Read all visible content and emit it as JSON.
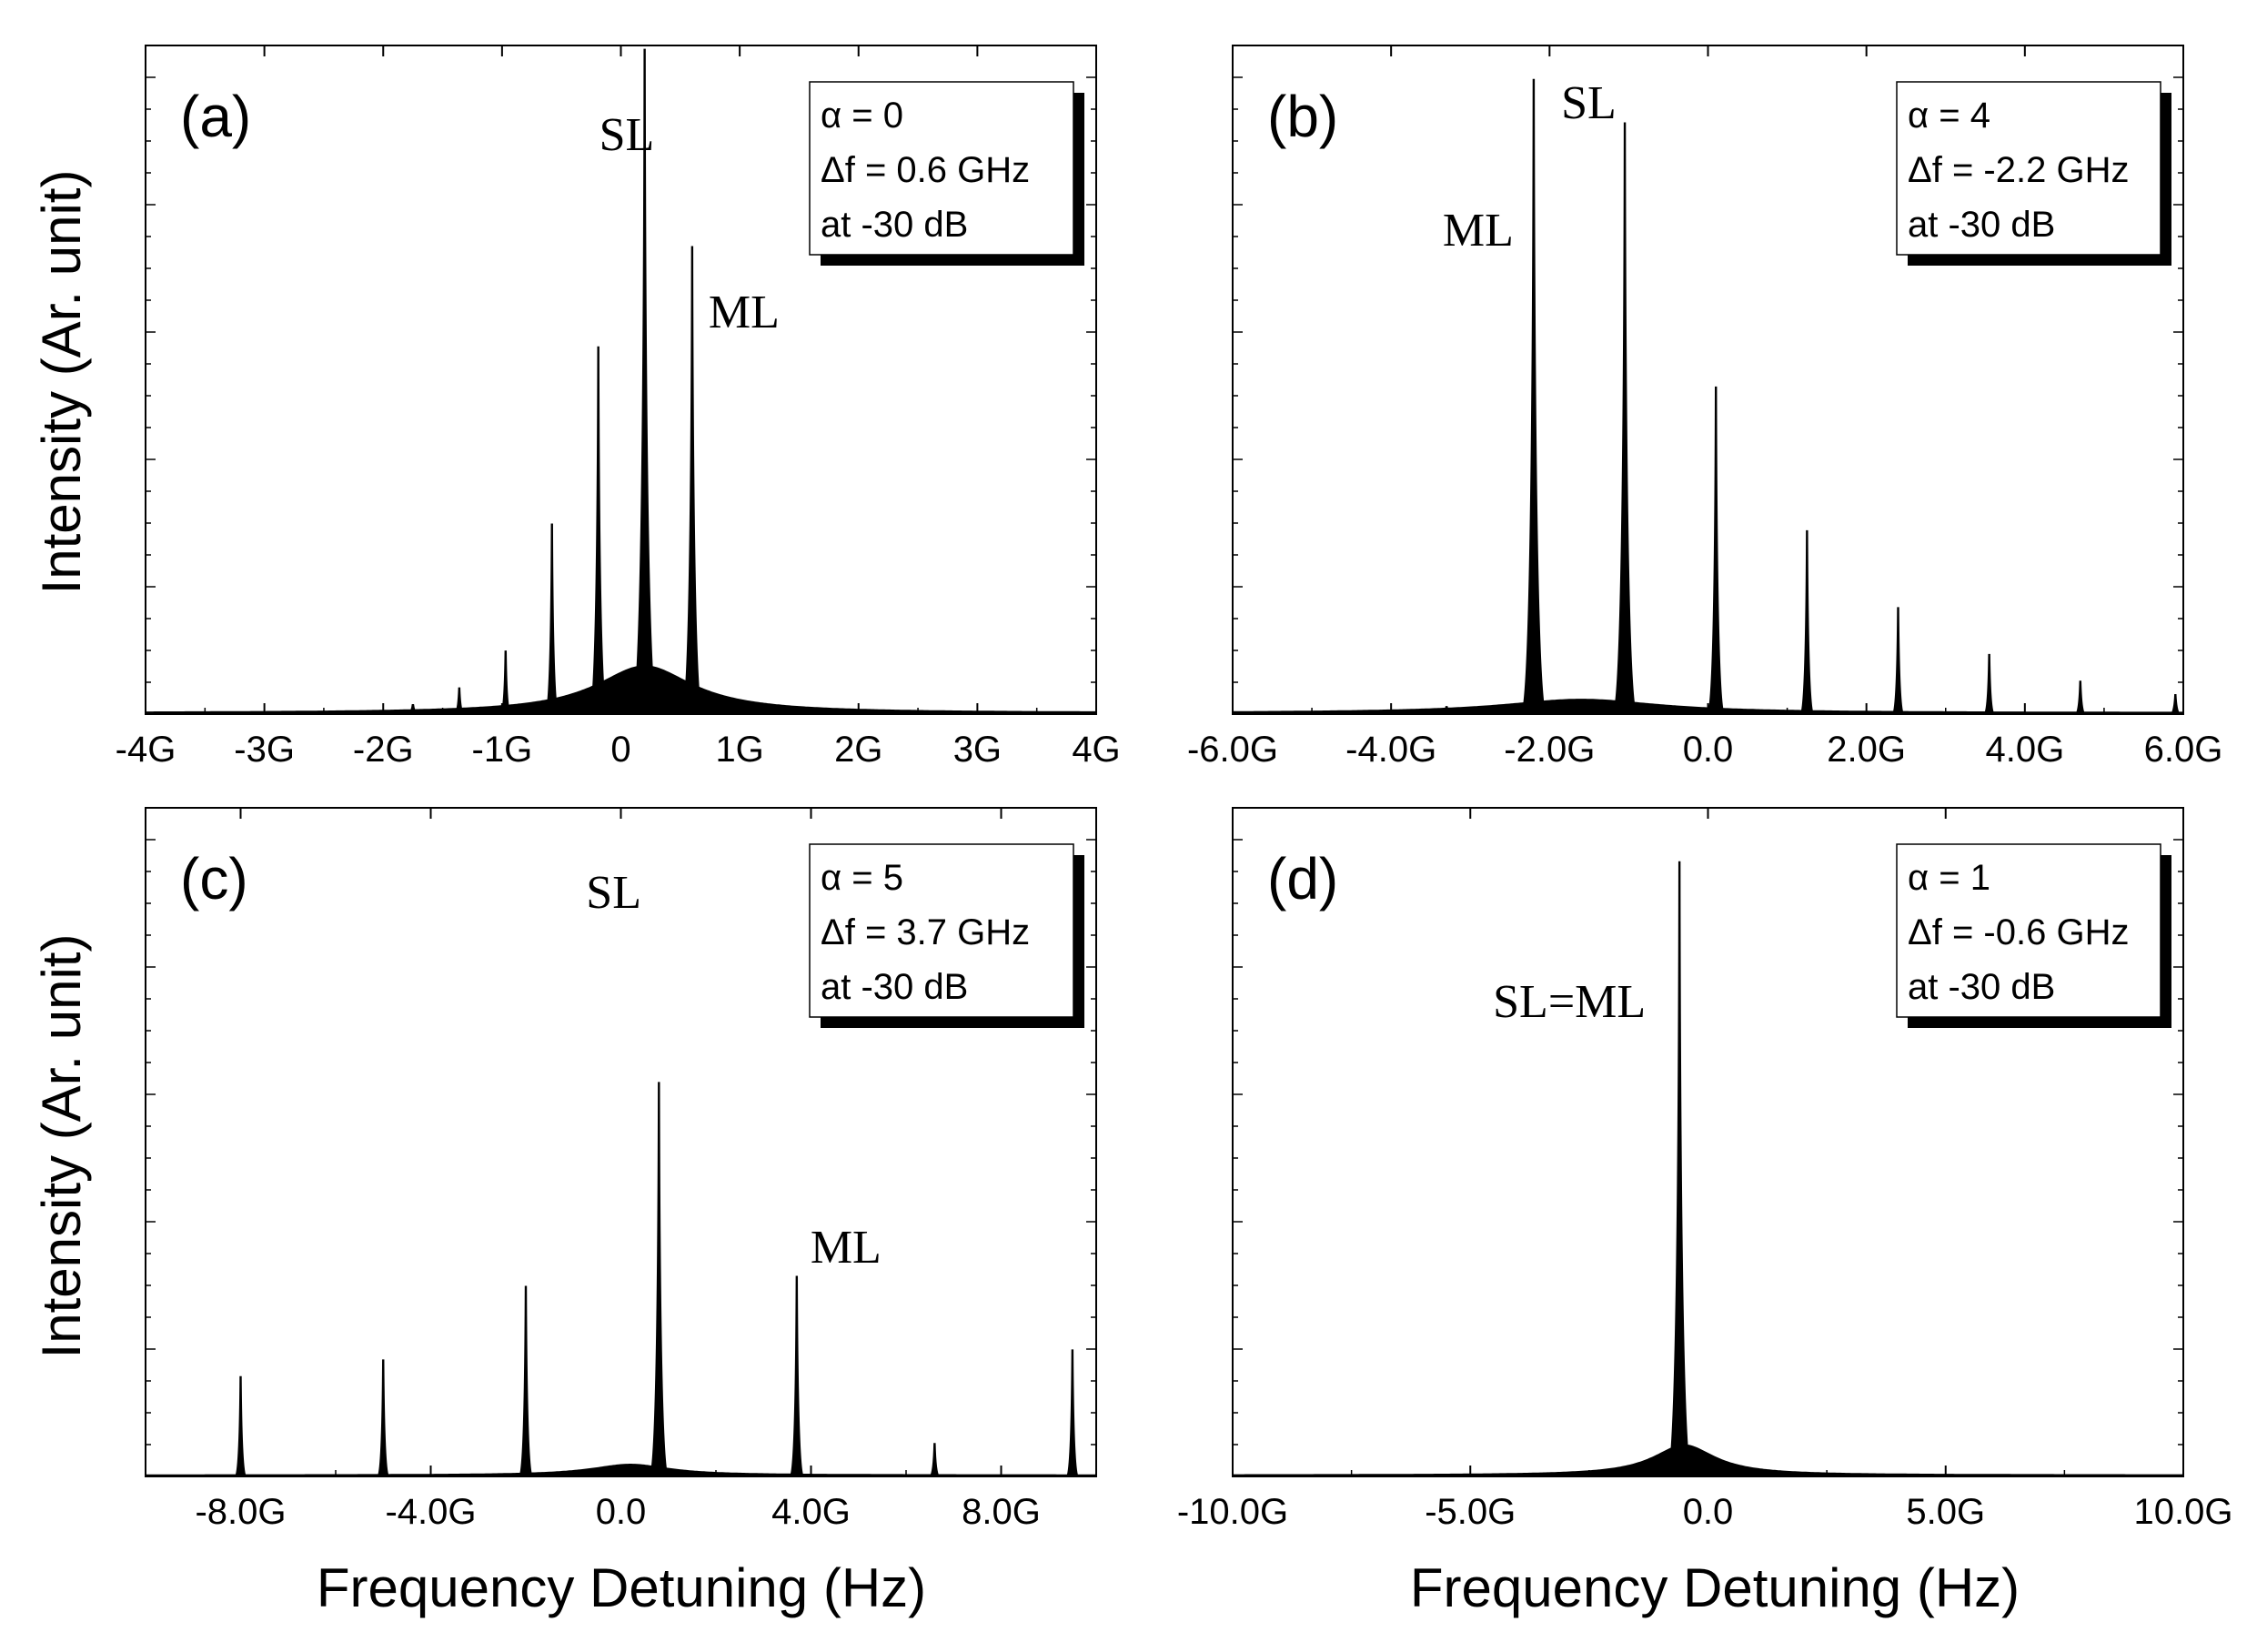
{
  "figure": {
    "ylabel": "Intensity (Ar. unit)",
    "xlabel": "Frequency Detuning (Hz)"
  },
  "chart_data": [
    {
      "panel": "(a)",
      "type": "line",
      "title": "",
      "xlabel": "Frequency Detuning (Hz)",
      "ylabel": "Intensity (Ar. unit)",
      "xlim": [
        -4.0,
        4.0
      ],
      "ylim": [
        0,
        1.0
      ],
      "xticks": [
        {
          "value": -4,
          "label": "-4G"
        },
        {
          "value": -3,
          "label": "-3G"
        },
        {
          "value": -2,
          "label": "-2G"
        },
        {
          "value": -1,
          "label": "-1G"
        },
        {
          "value": 0,
          "label": "0"
        },
        {
          "value": 1,
          "label": "1G"
        },
        {
          "value": 2,
          "label": "2G"
        },
        {
          "value": 3,
          "label": "3G"
        },
        {
          "value": 4,
          "label": "4G"
        }
      ],
      "x_unit_note": "G = GHz",
      "peaks": [
        {
          "x": -2.1,
          "y": 0.004
        },
        {
          "x": -1.75,
          "y": 0.015
        },
        {
          "x": -1.36,
          "y": 0.04
        },
        {
          "x": -0.97,
          "y": 0.095
        },
        {
          "x": -0.58,
          "y": 0.285
        },
        {
          "x": -0.19,
          "y": 0.55
        },
        {
          "x": 0.2,
          "y": 0.995
        },
        {
          "x": 0.6,
          "y": 0.7
        }
      ],
      "background": {
        "center": 0.2,
        "amplitude": 0.07,
        "width": 0.5
      },
      "annotations": [
        {
          "text": "SL",
          "x": 0.2
        },
        {
          "text": "ML",
          "x": 0.6
        }
      ],
      "legend": {
        "position": "top-right",
        "lines": [
          "α = 0",
          "Δf = 0.6 GHz",
          "at -30 dB"
        ]
      }
    },
    {
      "panel": "(b)",
      "type": "line",
      "title": "",
      "xlabel": "Frequency Detuning (Hz)",
      "ylabel": "Intensity (Ar. unit)",
      "xlim": [
        -6.0,
        6.0
      ],
      "ylim": [
        0,
        1.0
      ],
      "xticks": [
        {
          "value": -6,
          "label": "-6.0G"
        },
        {
          "value": -4,
          "label": "-4.0G"
        },
        {
          "value": -2,
          "label": "-2.0G"
        },
        {
          "value": 0,
          "label": "0.0"
        },
        {
          "value": 2,
          "label": "2.0G"
        },
        {
          "value": 4,
          "label": "4.0G"
        },
        {
          "value": 6,
          "label": "6.0G"
        }
      ],
      "x_unit_note": "G = GHz",
      "peaks": [
        {
          "x": -3.3,
          "y": 0.012
        },
        {
          "x": -2.2,
          "y": 0.95
        },
        {
          "x": -1.05,
          "y": 0.885
        },
        {
          "x": 0.1,
          "y": 0.49
        },
        {
          "x": 1.25,
          "y": 0.275
        },
        {
          "x": 2.4,
          "y": 0.16
        },
        {
          "x": 3.55,
          "y": 0.09
        },
        {
          "x": 4.7,
          "y": 0.05
        },
        {
          "x": 5.9,
          "y": 0.03
        }
      ],
      "background": {
        "center": -1.6,
        "amplitude": 0.02,
        "width": 1.2
      },
      "annotations": [
        {
          "text": "SL",
          "x": -1.05
        },
        {
          "text": "ML",
          "x": -2.2
        }
      ],
      "legend": {
        "position": "top-right",
        "lines": [
          "α = 4",
          "Δf = -2.2 GHz",
          "at -30 dB"
        ]
      }
    },
    {
      "panel": "(c)",
      "type": "line",
      "title": "",
      "xlabel": "Frequency Detuning (Hz)",
      "ylabel": "Intensity (Ar. unit)",
      "xlim": [
        -10.0,
        10.0
      ],
      "ylim": [
        0,
        1.0
      ],
      "xticks": [
        {
          "value": -8,
          "label": "-8.0G"
        },
        {
          "value": -4,
          "label": "-4.0G"
        },
        {
          "value": 0,
          "label": "0.0"
        },
        {
          "value": 4,
          "label": "4.0G"
        },
        {
          "value": 8,
          "label": "8.0G"
        }
      ],
      "x_unit_note": "G = GHz",
      "peaks": [
        {
          "x": -8.0,
          "y": 0.15
        },
        {
          "x": -5.0,
          "y": 0.175
        },
        {
          "x": -2.0,
          "y": 0.285
        },
        {
          "x": 0.8,
          "y": 0.59
        },
        {
          "x": 3.7,
          "y": 0.3
        },
        {
          "x": 6.6,
          "y": 0.05
        },
        {
          "x": 9.5,
          "y": 0.19
        }
      ],
      "background": {
        "center": 0.2,
        "amplitude": 0.016,
        "width": 1.0
      },
      "annotations": [
        {
          "text": "SL",
          "x": 0.8
        },
        {
          "text": "ML",
          "x": 3.7
        }
      ],
      "legend": {
        "position": "top-right",
        "lines": [
          "α = 5",
          "Δf = 3.7 GHz",
          "at -30 dB"
        ]
      }
    },
    {
      "panel": "(d)",
      "type": "line",
      "title": "",
      "xlabel": "Frequency Detuning (Hz)",
      "ylabel": "Intensity (Ar. unit)",
      "xlim": [
        -10.0,
        10.0
      ],
      "ylim": [
        0,
        1.0
      ],
      "xticks": [
        {
          "value": -10,
          "label": "-10.0G"
        },
        {
          "value": -5,
          "label": "-5.0G"
        },
        {
          "value": 0,
          "label": "0.0"
        },
        {
          "value": 5,
          "label": "5.0G"
        },
        {
          "value": 10,
          "label": "10.0G"
        }
      ],
      "x_unit_note": "G = GHz",
      "peaks": [
        {
          "x": -0.6,
          "y": 0.92
        }
      ],
      "background": {
        "center": -0.5,
        "amplitude": 0.045,
        "width": 0.8
      },
      "annotations": [
        {
          "text": "SL=ML",
          "x": -0.6
        }
      ],
      "legend": {
        "position": "top-right",
        "lines": [
          "α = 1",
          "Δf = -0.6 GHz",
          "at -30 dB"
        ]
      }
    }
  ]
}
